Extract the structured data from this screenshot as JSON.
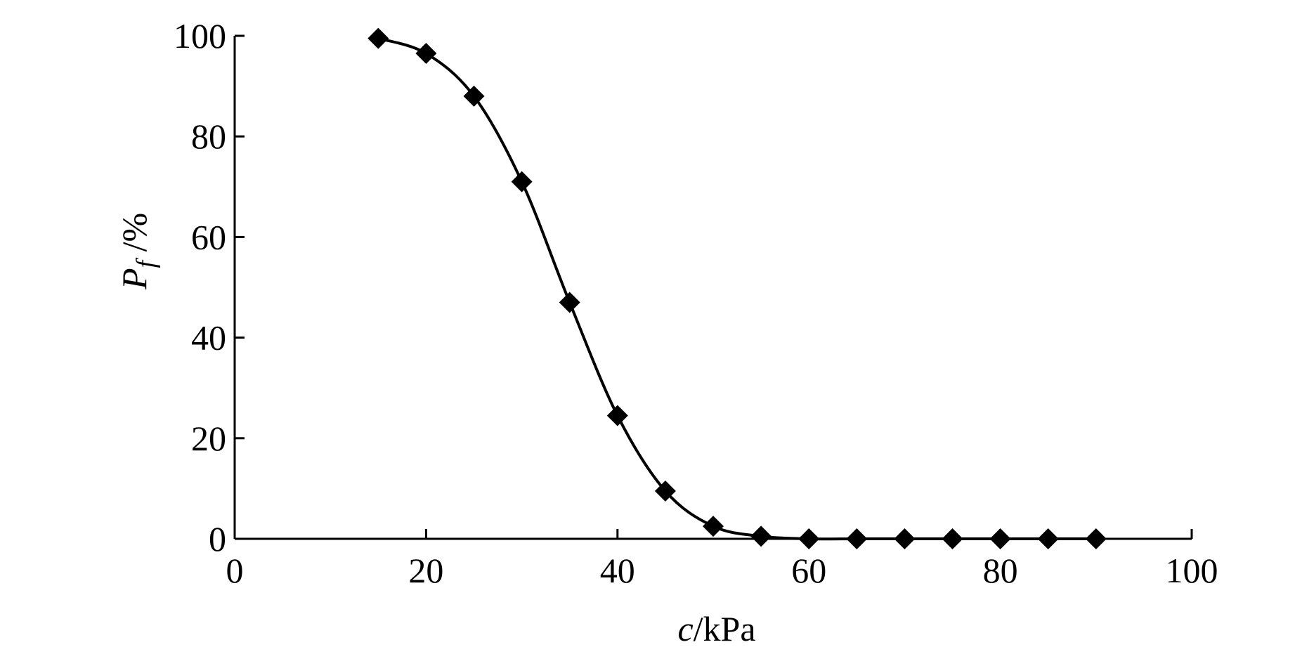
{
  "chart_data": {
    "type": "line",
    "xlabel_var": "c",
    "xlabel_unit": "/kPa",
    "ylabel_var": "P",
    "ylabel_sub": "f",
    "ylabel_unit": " /%",
    "xlim": [
      0,
      100
    ],
    "ylim": [
      0,
      100
    ],
    "xticks": [
      0,
      20,
      40,
      60,
      80,
      100
    ],
    "yticks": [
      0,
      20,
      40,
      60,
      80,
      100
    ],
    "grid": false,
    "marker": "diamond",
    "color": "#000000",
    "series": [
      {
        "x": [
          15,
          20,
          25,
          30,
          35,
          40,
          45,
          50,
          55,
          60,
          65,
          70,
          75,
          80,
          85,
          90
        ],
        "y": [
          99.5,
          96.5,
          88,
          71,
          47,
          24.5,
          9.5,
          2.5,
          0.5,
          0,
          0,
          0,
          0,
          0,
          0,
          0
        ]
      }
    ]
  }
}
